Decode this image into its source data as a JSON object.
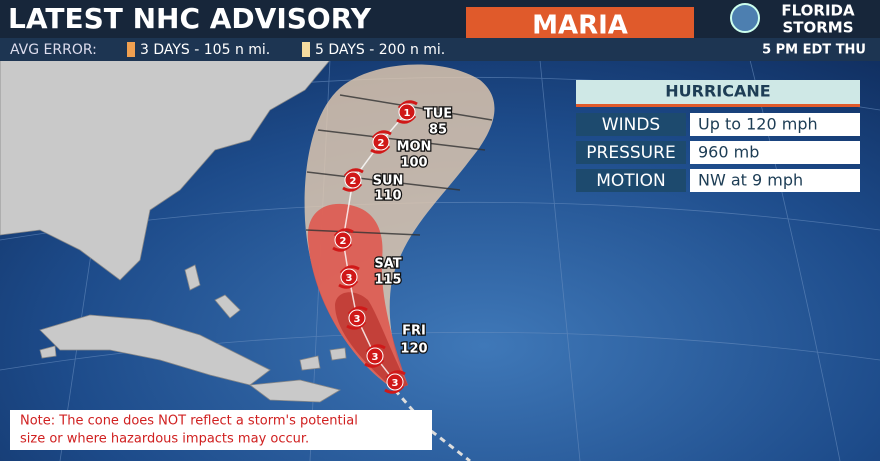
{
  "header": {
    "title": "LATEST NHC ADVISORY",
    "storm_name": "MARIA",
    "brand": [
      "FLORIDA",
      "STORMS"
    ]
  },
  "error_bar": {
    "label": "AVG ERROR:",
    "three_day": "3 DAYS - 105 n mi.",
    "five_day": "5 DAYS - 200 n mi.",
    "time": "5 PM EDT THU"
  },
  "info": {
    "status": "HURRICANE",
    "rows": [
      [
        "WINDS",
        "Up to 120 mph"
      ],
      [
        "PRESSURE",
        "960 mb"
      ],
      [
        "MOTION",
        "NW at 9 mph"
      ]
    ]
  },
  "track": {
    "categories": [
      "1",
      "2",
      "2",
      "2",
      "3",
      "3",
      "3",
      "3"
    ],
    "labels": [
      [
        "TUE",
        "85"
      ],
      [
        "MON",
        "100"
      ],
      [
        "SUN",
        "110"
      ],
      [
        "SAT",
        "115"
      ],
      [
        "FRI",
        "120"
      ]
    ]
  },
  "note": [
    "Note: The cone does NOT reflect a storm's potential",
    "size or where hazardous impacts may occur."
  ]
}
